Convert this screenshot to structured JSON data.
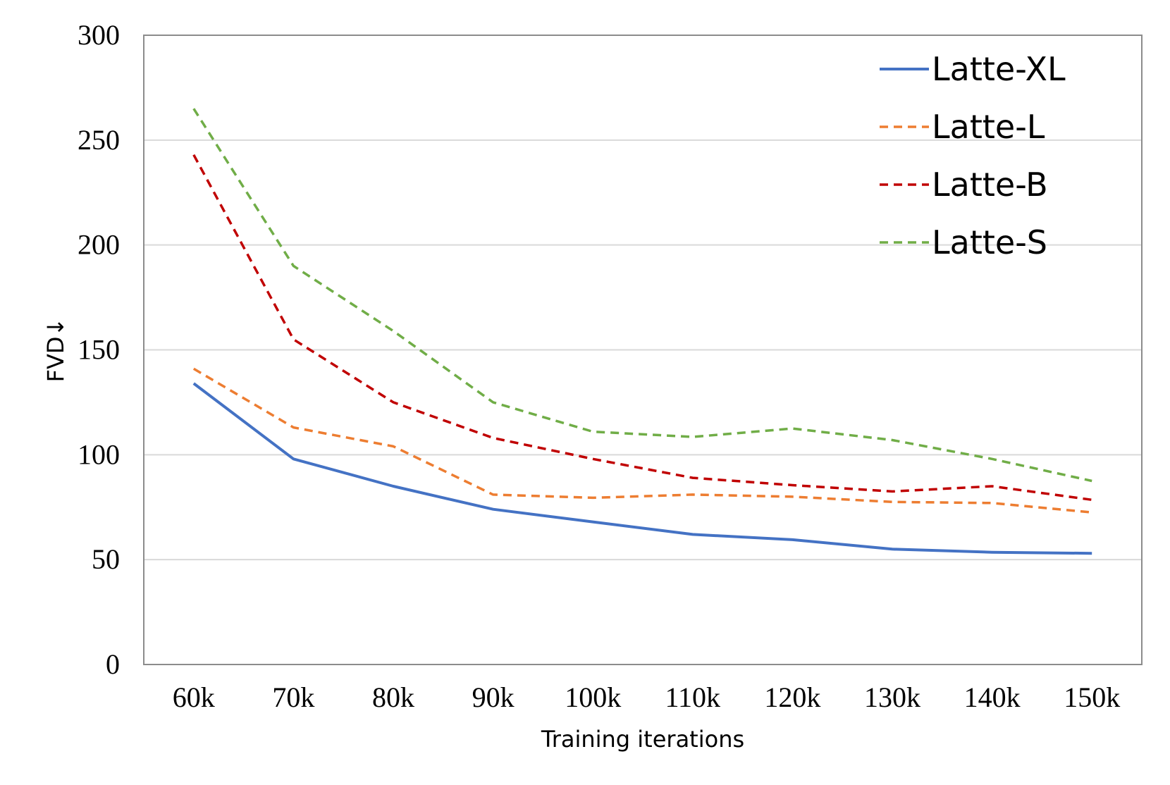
{
  "chart_data": {
    "type": "line",
    "x": [
      "60k",
      "70k",
      "80k",
      "90k",
      "100k",
      "110k",
      "120k",
      "130k",
      "140k",
      "150k"
    ],
    "xlabel": "Training iterations",
    "ylabel": "FVD",
    "ylabel_arrow": "↓",
    "ylim": [
      0,
      300
    ],
    "yticks": [
      "0",
      "50",
      "100",
      "150",
      "200",
      "250",
      "300"
    ],
    "grid": "horizontal",
    "legend": "top-right",
    "series": [
      {
        "name": "Latte-XL",
        "color": "#4472c4",
        "style": "solid",
        "values": [
          134,
          98,
          85,
          74,
          68,
          62,
          59.5,
          55,
          53.5,
          53
        ]
      },
      {
        "name": "Latte-L",
        "color": "#ed7d31",
        "style": "dashed",
        "values": [
          141,
          113,
          104,
          81,
          79.5,
          81,
          80,
          77.5,
          77,
          72.5
        ]
      },
      {
        "name": "Latte-B",
        "color": "#c00000",
        "style": "dashed",
        "values": [
          243,
          155,
          125,
          108,
          98,
          89,
          85.5,
          82.5,
          85,
          78.5
        ]
      },
      {
        "name": "Latte-S",
        "color": "#70ad47",
        "style": "dashed",
        "values": [
          265,
          190,
          159,
          125,
          111,
          108.5,
          112.5,
          107,
          98,
          87.5
        ]
      }
    ]
  }
}
